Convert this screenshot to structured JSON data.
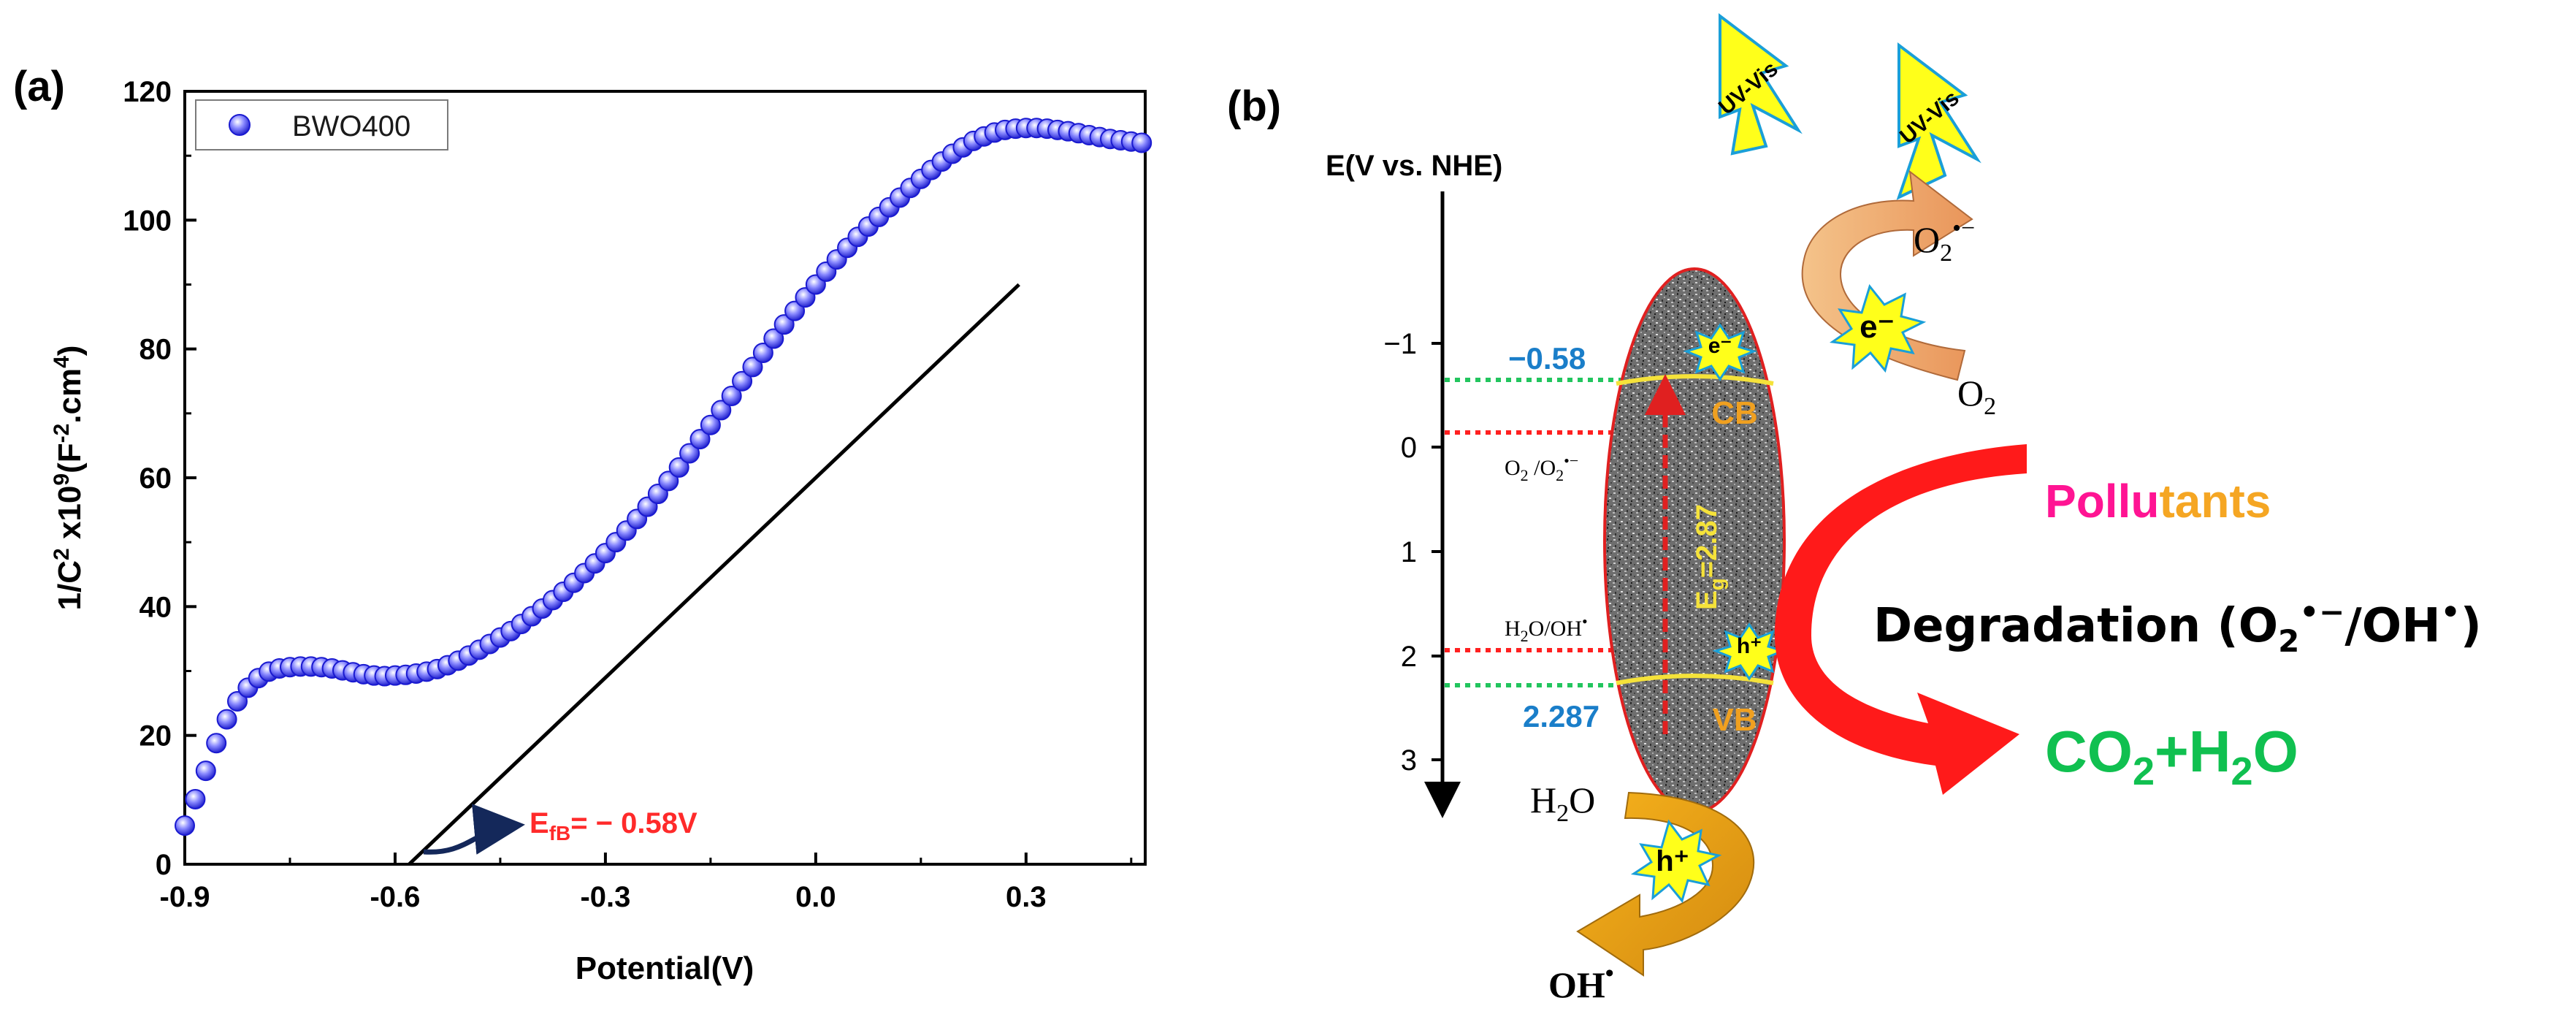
{
  "panels": {
    "a": {
      "label": "(a)"
    },
    "b": {
      "label": "(b)"
    }
  },
  "chart_data": {
    "type": "scatter",
    "title": "",
    "xlabel": "Potential(V)",
    "ylabel": {
      "base": "1/C",
      "exp": "2",
      "mid": " x10",
      "exp2": "9",
      "unit": "(F",
      "unit_exp": "-2",
      "unit_mid": ".cm",
      "unit_exp2": "4",
      "close": ")"
    },
    "xlim": [
      -0.9,
      0.47
    ],
    "ylim": [
      0,
      120
    ],
    "xticks": [
      -0.9,
      -0.6,
      -0.3,
      0.0,
      0.3
    ],
    "xtick_labels": [
      "-0.9",
      "-0.6",
      "-0.3",
      "0.0",
      "0.3"
    ],
    "yticks": [
      0,
      20,
      40,
      60,
      80,
      100,
      120
    ],
    "ytick_labels": [
      "0",
      "20",
      "40",
      "60",
      "80",
      "100",
      "120"
    ],
    "legend": {
      "entry": "BWO400",
      "placement": "top-left"
    },
    "series": [
      {
        "name": "BWO400",
        "color": "#2b2bd8",
        "x": [
          -0.9,
          -0.885,
          -0.87,
          -0.855,
          -0.84,
          -0.825,
          -0.81,
          -0.795,
          -0.78,
          -0.765,
          -0.75,
          -0.735,
          -0.72,
          -0.705,
          -0.69,
          -0.675,
          -0.66,
          -0.645,
          -0.63,
          -0.615,
          -0.6,
          -0.585,
          -0.57,
          -0.555,
          -0.54,
          -0.525,
          -0.51,
          -0.495,
          -0.48,
          -0.465,
          -0.45,
          -0.435,
          -0.42,
          -0.405,
          -0.39,
          -0.375,
          -0.36,
          -0.345,
          -0.33,
          -0.315,
          -0.3,
          -0.285,
          -0.27,
          -0.255,
          -0.24,
          -0.225,
          -0.21,
          -0.195,
          -0.18,
          -0.165,
          -0.15,
          -0.135,
          -0.12,
          -0.105,
          -0.09,
          -0.075,
          -0.06,
          -0.045,
          -0.03,
          -0.015,
          0.0,
          0.015,
          0.03,
          0.045,
          0.06,
          0.075,
          0.09,
          0.105,
          0.12,
          0.135,
          0.15,
          0.165,
          0.18,
          0.195,
          0.21,
          0.225,
          0.24,
          0.255,
          0.27,
          0.285,
          0.3,
          0.315,
          0.33,
          0.345,
          0.36,
          0.375,
          0.39,
          0.405,
          0.42,
          0.435,
          0.45,
          0.465
        ],
        "y": [
          6.0,
          10.1,
          14.5,
          18.8,
          22.5,
          25.3,
          27.4,
          28.9,
          29.9,
          30.4,
          30.6,
          30.7,
          30.7,
          30.6,
          30.4,
          30.1,
          29.8,
          29.5,
          29.3,
          29.2,
          29.3,
          29.4,
          29.6,
          29.9,
          30.3,
          30.9,
          31.6,
          32.4,
          33.3,
          34.2,
          35.2,
          36.2,
          37.3,
          38.5,
          39.7,
          41.0,
          42.3,
          43.7,
          45.2,
          46.7,
          48.3,
          50.0,
          51.8,
          53.6,
          55.5,
          57.5,
          59.5,
          61.6,
          63.8,
          66.0,
          68.2,
          70.5,
          72.7,
          75.0,
          77.2,
          79.4,
          81.6,
          83.8,
          85.9,
          88.0,
          90.0,
          92.0,
          93.9,
          95.7,
          97.4,
          99.0,
          100.5,
          102.0,
          103.5,
          105.0,
          106.4,
          107.8,
          109.1,
          110.3,
          111.3,
          112.3,
          113.0,
          113.6,
          114.0,
          114.2,
          114.3,
          114.3,
          114.2,
          114.0,
          113.8,
          113.5,
          113.2,
          112.9,
          112.6,
          112.4,
          112.2,
          112.0
        ]
      }
    ],
    "fit_line": {
      "x": [
        -0.58,
        0.29
      ],
      "y": [
        0,
        90
      ],
      "color": "#000000"
    },
    "annotation": {
      "prefix": "E",
      "sub": "fB",
      "text": "= − 0.58V",
      "color": "#ff2a2a",
      "x": -0.53,
      "y": 2.5
    }
  },
  "diagram": {
    "axis_title": "E(V vs. NHE)",
    "axis_ticks": [
      "−1",
      "0",
      "1",
      "2",
      "3"
    ],
    "light_labels": [
      "UV-Vis",
      "UV-Vis"
    ],
    "cb_value": "−0.58",
    "vb_value": "2.287",
    "redox1": {
      "a": "O",
      "a_sub": "2",
      "b": " /O",
      "b_sub": "2",
      "b_sup": "•−"
    },
    "redox2": {
      "text": "H",
      "sub": "2",
      "rest": "O/OH",
      "sup": "•"
    },
    "band_labels": {
      "cb": "CB",
      "vb": "VB"
    },
    "electron": "e⁻",
    "hole": "h⁺",
    "gap": {
      "prefix": "E",
      "sub": "g",
      "text": "=2.87"
    },
    "o2_radical": {
      "a": "O",
      "sub": "2",
      "sup": "•−"
    },
    "o2": {
      "a": "O",
      "sub": "2"
    },
    "water": {
      "a": "H",
      "sub": "2",
      "b": "O"
    },
    "hydroxyl": {
      "a": "OH",
      "sup": "•"
    },
    "pollutants": {
      "part1": "Pollu",
      "part2": "tants"
    },
    "degradation": {
      "text": "Degradation (O",
      "sub": "2",
      "sup": "•−",
      "mid": "/OH",
      "sup2": "•",
      "close": ")"
    },
    "products": {
      "a": "CO",
      "sub": "2",
      "b": "+H",
      "sub2": "2",
      "c": "O"
    },
    "colors": {
      "cb_line": "#22c55e",
      "vb_line": "#22c55e",
      "redox_line": "#ff2020",
      "value_blue": "#1a7ec9",
      "band_label": "#f0a020",
      "pollu": "#ff1493",
      "tants": "#f5a623",
      "products": "#10c050",
      "arrow_red": "#ff1a1a",
      "lightning": "#ffff1a"
    }
  }
}
